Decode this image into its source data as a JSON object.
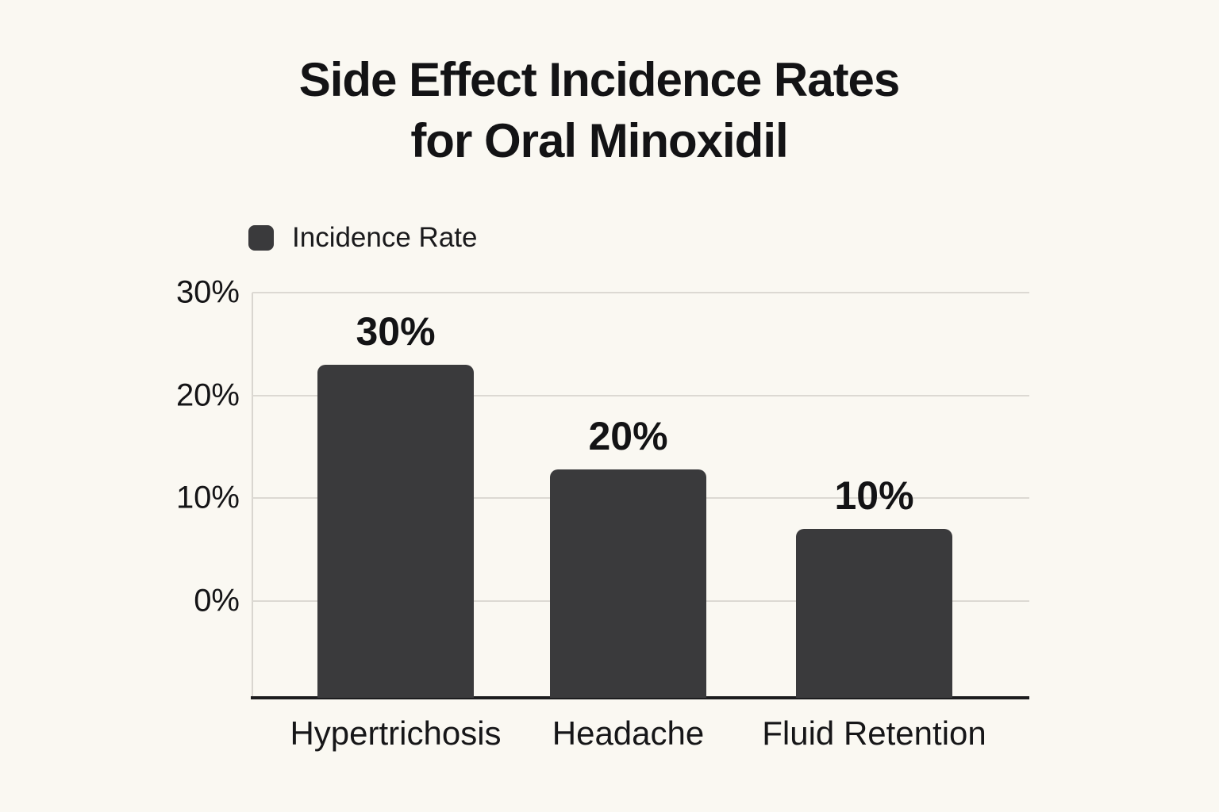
{
  "chart_data": {
    "type": "bar",
    "title": "Side Effect Incidence Rates for Oral Minoxidil",
    "title_lines": [
      "Side Effect Incidence Rates",
      "for Oral Minoxidil"
    ],
    "legend": [
      {
        "label": "Incidence Rate",
        "color": "#3a3a3c",
        "position": "top-left"
      }
    ],
    "categories": [
      "Hypertrichosis",
      "Headache",
      "Fluid Retention"
    ],
    "values": [
      30,
      20,
      10
    ],
    "data_labels": [
      "30%",
      "20%",
      "10%"
    ],
    "xlabel": "",
    "ylabel": "",
    "y_axis": {
      "tick_labels": [
        "30%",
        "20%",
        "10%",
        "0%"
      ],
      "tick_values": [
        30,
        20,
        10,
        0
      ],
      "top_value": 30,
      "baseline_value": -9.4,
      "grid": true
    },
    "colors": {
      "background": "#faf8f2",
      "bar": "#3a3a3c",
      "grid": "#dcd9d3",
      "axis_line": "#d9d6d0",
      "baseline": "#1c1c1e",
      "text": "#17171a"
    },
    "render_hints": {
      "bar_top_values": [
        23.0,
        12.8,
        7.0
      ],
      "bars_extend_below_zero_to_baseline": true
    }
  }
}
